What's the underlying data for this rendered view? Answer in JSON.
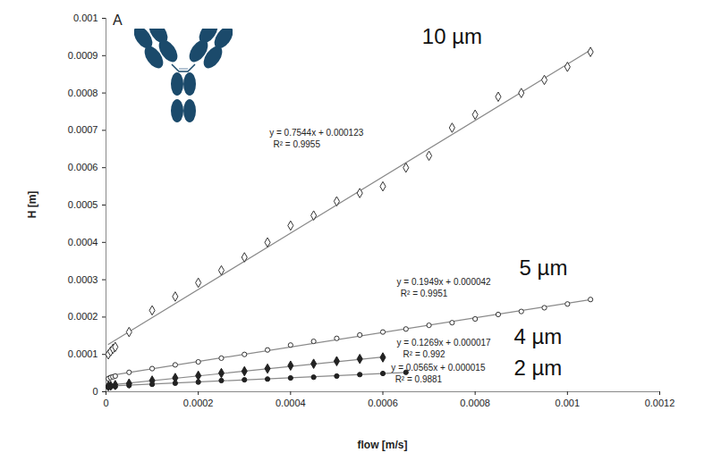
{
  "chart_data": {
    "type": "scatter",
    "panel_label": "A",
    "x_label": "flow [m/s]",
    "y_label": "H [m]",
    "xlim": [
      0,
      0.0012
    ],
    "xticks": [
      0,
      0.0002,
      0.0004,
      0.0006,
      0.0008,
      0.001,
      0.0012
    ],
    "ylim": [
      0,
      0.001
    ],
    "yticks": [
      0,
      0.0001,
      0.0002,
      0.0003,
      0.0004,
      0.0005,
      0.0006,
      0.0007,
      0.0008,
      0.0009,
      0.001
    ],
    "grid": false,
    "series": [
      {
        "name": "10 µm",
        "color": "#333333",
        "marker": "open_diamond",
        "x": [
          5e-06,
          1e-05,
          1.5e-05,
          2e-05,
          5e-05,
          0.0001,
          0.00015,
          0.0002,
          0.00025,
          0.0003,
          0.00035,
          0.0004,
          0.00045,
          0.0005,
          0.00055,
          0.0006,
          0.00065,
          0.0007,
          0.00075,
          0.0008,
          0.00085,
          0.0009,
          0.00095,
          0.001,
          0.00105
        ],
        "values": [
          0.0001,
          0.000108,
          0.000115,
          0.00012,
          0.00016,
          0.000218,
          0.000255,
          0.000292,
          0.000325,
          0.00036,
          0.0004,
          0.000445,
          0.000472,
          0.00051,
          0.000532,
          0.00055,
          0.0006,
          0.000632,
          0.000707,
          0.000742,
          0.00079,
          0.0008,
          0.000835,
          0.00087,
          0.00091
        ],
        "fit": {
          "slope": 0.7544,
          "intercept": 0.000123,
          "r2": 0.9955,
          "equation": "y = 0.7544x + 0.000123",
          "r2_label": "R² = 0.9955"
        }
      },
      {
        "name": "5 µm",
        "color": "#333333",
        "marker": "open_circle",
        "x": [
          5e-06,
          1e-05,
          1.5e-05,
          2e-05,
          5e-05,
          0.0001,
          0.00015,
          0.0002,
          0.00025,
          0.0003,
          0.00035,
          0.0004,
          0.00045,
          0.0005,
          0.00055,
          0.0006,
          0.00065,
          0.0007,
          0.00075,
          0.0008,
          0.00085,
          0.0009,
          0.00095,
          0.001,
          0.00105
        ],
        "values": [
          3.5e-05,
          3.8e-05,
          4e-05,
          4.2e-05,
          5.2e-05,
          6.2e-05,
          7.2e-05,
          8e-05,
          9e-05,
          0.0001,
          0.000112,
          0.000125,
          0.000135,
          0.000143,
          0.000152,
          0.00016,
          0.000168,
          0.000178,
          0.000185,
          0.000195,
          0.000207,
          0.000215,
          0.000225,
          0.000235,
          0.000247
        ],
        "fit": {
          "slope": 0.1949,
          "intercept": 4.2e-05,
          "r2": 0.9951,
          "equation": "y = 0.1949x + 0.000042",
          "r2_label": "R² = 0.9951"
        }
      },
      {
        "name": "4 µm",
        "color": "#222222",
        "marker": "diamond",
        "x": [
          5e-06,
          1e-05,
          2e-05,
          5e-05,
          0.0001,
          0.00015,
          0.0002,
          0.00025,
          0.0003,
          0.00035,
          0.0004,
          0.00045,
          0.0005,
          0.00055,
          0.0006
        ],
        "values": [
          1.5e-05,
          1.6e-05,
          1.8e-05,
          2.2e-05,
          3e-05,
          3.7e-05,
          4.3e-05,
          5e-05,
          5.5e-05,
          6.2e-05,
          7e-05,
          7.5e-05,
          8.2e-05,
          8.8e-05,
          9.2e-05
        ],
        "fit": {
          "slope": 0.1269,
          "intercept": 1.7e-05,
          "r2": 0.992,
          "equation": "y = 0.1269x + 0.000017",
          "r2_label": "R² = 0.992"
        }
      },
      {
        "name": "2 µm",
        "color": "#222222",
        "marker": "circle",
        "x": [
          5e-06,
          1e-05,
          2e-05,
          5e-05,
          0.0001,
          0.00015,
          0.0002,
          0.00025,
          0.0003,
          0.00035,
          0.0004,
          0.00045,
          0.0005,
          0.00055,
          0.0006,
          0.00065
        ],
        "values": [
          1.2e-05,
          1.3e-05,
          1.4e-05,
          1.7e-05,
          2e-05,
          2.3e-05,
          2.6e-05,
          3e-05,
          3.2e-05,
          3.4e-05,
          3.7e-05,
          3.9e-05,
          4.2e-05,
          4.6e-05,
          4.9e-05,
          5.2e-05
        ],
        "fit": {
          "slope": 0.0565,
          "intercept": 1.5e-05,
          "r2": 0.9881,
          "equation": "y = 0.0565x + 0.000015",
          "r2_label": "R² = 0.9881"
        }
      }
    ]
  }
}
